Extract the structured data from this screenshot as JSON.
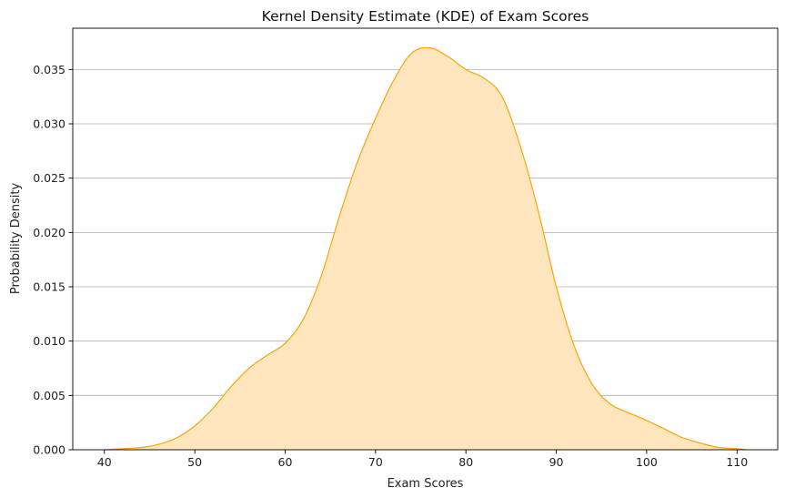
{
  "chart_data": {
    "type": "area",
    "title": "Kernel Density Estimate (KDE) of Exam Scores",
    "xlabel": "Exam Scores",
    "ylabel": "Probability Density",
    "xlim": [
      36.5,
      114.5
    ],
    "ylim": [
      0,
      0.0388
    ],
    "xticks": [
      40,
      50,
      60,
      70,
      80,
      90,
      100,
      110
    ],
    "yticks": [
      0.0,
      0.005,
      0.01,
      0.015,
      0.02,
      0.025,
      0.03,
      0.035
    ],
    "ytick_labels": [
      "0.000",
      "0.005",
      "0.010",
      "0.015",
      "0.020",
      "0.025",
      "0.030",
      "0.035"
    ],
    "grid": "horizontal",
    "series": [
      {
        "color": "#FFA500",
        "fill": "#FFE6BE",
        "x": [
          40,
          42,
          44,
          46,
          48,
          50,
          52,
          54,
          56,
          58,
          60,
          62,
          64,
          66,
          68,
          70,
          72,
          74,
          76,
          78,
          80,
          82,
          84,
          86,
          88,
          90,
          92,
          94,
          96,
          98,
          100,
          102,
          104,
          106,
          108,
          110,
          111
        ],
        "y": [
          0.0,
          0.0001,
          0.0002,
          0.0005,
          0.0011,
          0.0022,
          0.0038,
          0.0058,
          0.0075,
          0.0087,
          0.0098,
          0.012,
          0.016,
          0.0215,
          0.0265,
          0.0305,
          0.034,
          0.0365,
          0.037,
          0.0362,
          0.035,
          0.0342,
          0.0325,
          0.028,
          0.022,
          0.015,
          0.0095,
          0.006,
          0.0042,
          0.0034,
          0.0027,
          0.0019,
          0.0011,
          0.0006,
          0.0002,
          0.0001,
          0.0
        ]
      }
    ]
  }
}
